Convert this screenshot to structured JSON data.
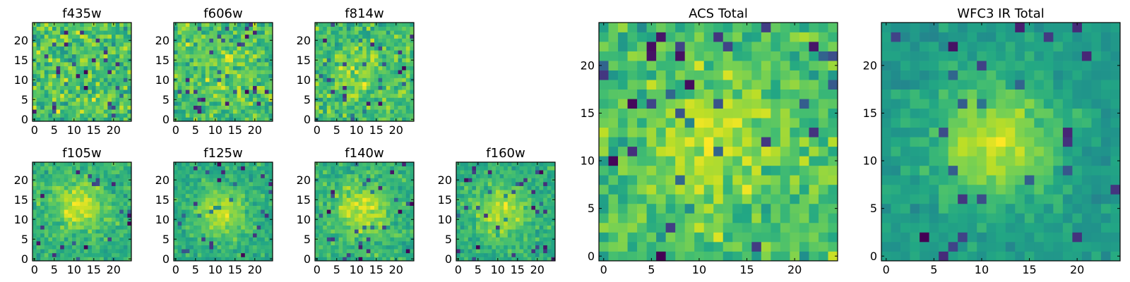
{
  "chart_data": [
    {
      "type": "heatmap",
      "id": "f435w",
      "title": "f435w",
      "size": 25,
      "x_ticks": [
        "0",
        "5",
        "10",
        "15",
        "20"
      ],
      "y_ticks": [
        "0",
        "5",
        "10",
        "15",
        "20"
      ],
      "xlim": [
        0,
        24
      ],
      "ylim": [
        0,
        24
      ],
      "colormap": "viridis",
      "profile": {
        "peak": 0.0,
        "noise": 1.0,
        "outliers": 0.05,
        "seed": 11
      }
    },
    {
      "type": "heatmap",
      "id": "f606w",
      "title": "f606w",
      "size": 25,
      "x_ticks": [
        "0",
        "5",
        "10",
        "15",
        "20"
      ],
      "y_ticks": [
        "0",
        "5",
        "10",
        "15",
        "20"
      ],
      "xlim": [
        0,
        24
      ],
      "ylim": [
        0,
        24
      ],
      "colormap": "viridis",
      "profile": {
        "peak": 0.25,
        "noise": 0.9,
        "outliers": 0.05,
        "seed": 23
      }
    },
    {
      "type": "heatmap",
      "id": "f814w",
      "title": "f814w",
      "size": 25,
      "x_ticks": [
        "0",
        "5",
        "10",
        "15",
        "20"
      ],
      "y_ticks": [
        "0",
        "5",
        "10",
        "15",
        "20"
      ],
      "xlim": [
        0,
        24
      ],
      "ylim": [
        0,
        24
      ],
      "colormap": "viridis",
      "profile": {
        "peak": 0.35,
        "noise": 0.9,
        "outliers": 0.05,
        "seed": 37
      }
    },
    {
      "type": "heatmap",
      "id": "f105w",
      "title": "f105w",
      "size": 25,
      "x_ticks": [
        "0",
        "5",
        "10",
        "15",
        "20"
      ],
      "y_ticks": [
        "0",
        "5",
        "10",
        "15",
        "20"
      ],
      "xlim": [
        0,
        24
      ],
      "ylim": [
        0,
        24
      ],
      "colormap": "viridis",
      "profile": {
        "peak": 0.7,
        "noise": 0.6,
        "outliers": 0.04,
        "seed": 41
      }
    },
    {
      "type": "heatmap",
      "id": "f125w",
      "title": "f125w",
      "size": 25,
      "x_ticks": [
        "0",
        "5",
        "10",
        "15",
        "20"
      ],
      "y_ticks": [
        "0",
        "5",
        "10",
        "15",
        "20"
      ],
      "xlim": [
        0,
        24
      ],
      "ylim": [
        0,
        24
      ],
      "colormap": "viridis",
      "profile": {
        "peak": 0.7,
        "noise": 0.6,
        "outliers": 0.04,
        "seed": 53
      }
    },
    {
      "type": "heatmap",
      "id": "f140w",
      "title": "f140w",
      "size": 25,
      "x_ticks": [
        "0",
        "5",
        "10",
        "15",
        "20"
      ],
      "y_ticks": [
        "0",
        "5",
        "10",
        "15",
        "20"
      ],
      "xlim": [
        0,
        24
      ],
      "ylim": [
        0,
        24
      ],
      "colormap": "viridis",
      "profile": {
        "peak": 0.7,
        "noise": 0.6,
        "outliers": 0.05,
        "seed": 67
      }
    },
    {
      "type": "heatmap",
      "id": "f160w",
      "title": "f160w",
      "size": 25,
      "x_ticks": [
        "0",
        "5",
        "10",
        "15",
        "20"
      ],
      "y_ticks": [
        "0",
        "5",
        "10",
        "15",
        "20"
      ],
      "xlim": [
        0,
        24
      ],
      "ylim": [
        0,
        24
      ],
      "colormap": "viridis",
      "profile": {
        "peak": 0.65,
        "noise": 0.6,
        "outliers": 0.05,
        "seed": 79
      }
    },
    {
      "type": "heatmap",
      "id": "acs-total",
      "title": "ACS Total",
      "size": 25,
      "x_ticks": [
        "0",
        "5",
        "10",
        "15",
        "20"
      ],
      "y_ticks": [
        "0",
        "5",
        "10",
        "15",
        "20"
      ],
      "xlim": [
        0,
        24
      ],
      "ylim": [
        0,
        24
      ],
      "colormap": "viridis",
      "profile": {
        "peak": 0.45,
        "noise": 0.75,
        "outliers": 0.05,
        "seed": 97
      }
    },
    {
      "type": "heatmap",
      "id": "wfc3-ir-total",
      "title": "WFC3 IR Total",
      "size": 25,
      "x_ticks": [
        "0",
        "5",
        "10",
        "15",
        "20"
      ],
      "y_ticks": [
        "0",
        "5",
        "10",
        "15",
        "20"
      ],
      "xlim": [
        0,
        24
      ],
      "ylim": [
        0,
        24
      ],
      "colormap": "viridis",
      "profile": {
        "peak": 1.0,
        "noise": 0.5,
        "outliers": 0.04,
        "seed": 131
      }
    }
  ]
}
